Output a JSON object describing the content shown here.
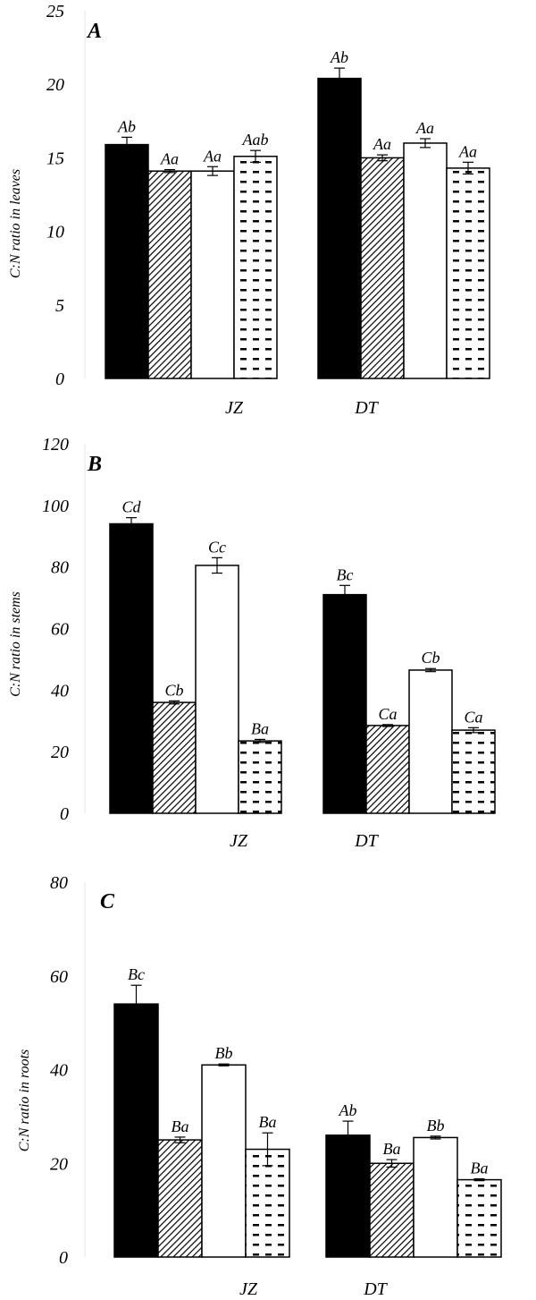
{
  "chart_data": [
    {
      "type": "bar",
      "panel_label": "A",
      "ylabel": "C:N ratio in leaves",
      "ylim": [
        0,
        25
      ],
      "yticks": [
        "0",
        "5",
        "10",
        "15",
        "20",
        "25"
      ],
      "categories": [
        "JZ",
        "DT"
      ],
      "series_patterns": [
        "solid-black",
        "diagonal-hatch",
        "white",
        "dashes"
      ],
      "series": [
        {
          "values": [
            15.9,
            20.4
          ],
          "errors": [
            0.5,
            0.7
          ],
          "labels": [
            "Ab",
            "Ab"
          ]
        },
        {
          "values": [
            14.1,
            15.0
          ],
          "errors": [
            0.1,
            0.2
          ],
          "labels": [
            "Aa",
            "Aa"
          ]
        },
        {
          "values": [
            14.1,
            16.0
          ],
          "errors": [
            0.3,
            0.3
          ],
          "labels": [
            "Aa",
            "Aa"
          ]
        },
        {
          "values": [
            15.1,
            14.3
          ],
          "errors": [
            0.4,
            0.4
          ],
          "labels": [
            "Aab",
            "Aa"
          ]
        }
      ]
    },
    {
      "type": "bar",
      "panel_label": "B",
      "ylabel": "C:N ratio in stems",
      "ylim": [
        0,
        120
      ],
      "yticks": [
        "0",
        "20",
        "40",
        "60",
        "80",
        "100",
        "120"
      ],
      "categories": [
        "JZ",
        "DT"
      ],
      "series_patterns": [
        "solid-black",
        "diagonal-hatch",
        "white",
        "dashes"
      ],
      "series": [
        {
          "values": [
            94.0,
            71.0
          ],
          "errors": [
            2.0,
            3.0
          ],
          "labels": [
            "Cd",
            "Bc"
          ]
        },
        {
          "values": [
            36.0,
            28.5
          ],
          "errors": [
            0.5,
            0.3
          ],
          "labels": [
            "Cb",
            "Ca"
          ]
        },
        {
          "values": [
            80.5,
            46.5
          ],
          "errors": [
            2.5,
            0.5
          ],
          "labels": [
            "Cc",
            "Cb"
          ]
        },
        {
          "values": [
            23.5,
            27.0
          ],
          "errors": [
            0.5,
            0.8
          ],
          "labels": [
            "Ba",
            "Ca"
          ]
        }
      ]
    },
    {
      "type": "bar",
      "panel_label": "C",
      "ylabel": "C:N ratio in roots",
      "ylim": [
        0,
        80
      ],
      "yticks": [
        "0",
        "20",
        "40",
        "60",
        "80"
      ],
      "categories": [
        "JZ",
        "DT"
      ],
      "series_patterns": [
        "solid-black",
        "diagonal-hatch",
        "white",
        "dashes"
      ],
      "series": [
        {
          "values": [
            54.0,
            26.0
          ],
          "errors": [
            4.0,
            3.0
          ],
          "labels": [
            "Bc",
            "Ab"
          ]
        },
        {
          "values": [
            25.0,
            20.0
          ],
          "errors": [
            0.6,
            0.8
          ],
          "labels": [
            "Ba",
            "Ba"
          ]
        },
        {
          "values": [
            41.0,
            25.5
          ],
          "errors": [
            0.2,
            0.3
          ],
          "labels": [
            "Bb",
            "Bb"
          ]
        },
        {
          "values": [
            23.0,
            16.5
          ],
          "errors": [
            3.5,
            0.2
          ],
          "labels": [
            "Ba",
            "Ba"
          ]
        }
      ]
    }
  ]
}
